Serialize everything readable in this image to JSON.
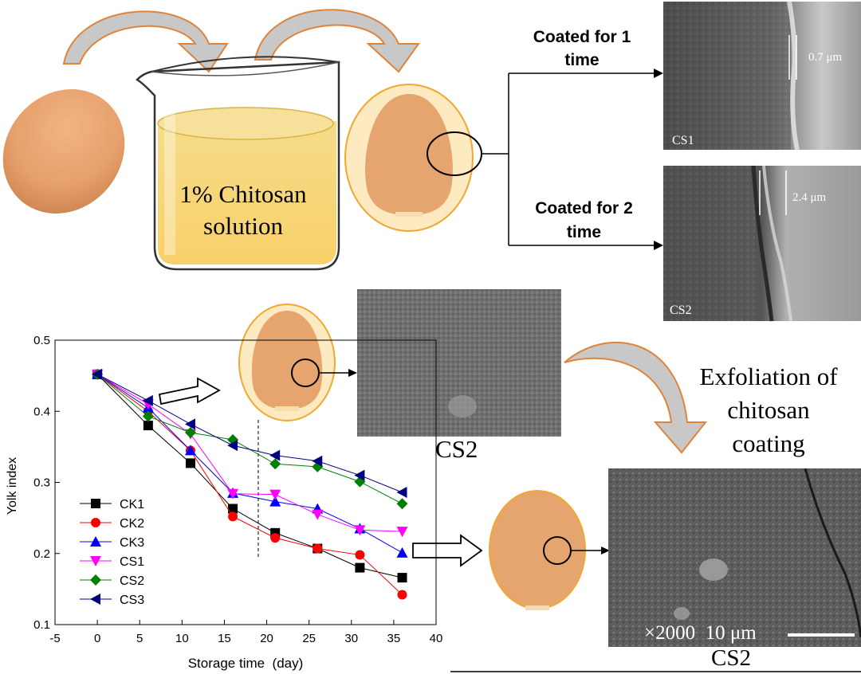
{
  "beaker_text": [
    "1% Chitosan",
    "solution"
  ],
  "branch_top": [
    "Coated for 1",
    "time"
  ],
  "branch_bottom": [
    "Coated for 2",
    "time"
  ],
  "sem_cs1": {
    "label": "CS1",
    "thickness": "0.7 μm"
  },
  "sem_cs2_cross": {
    "label": "CS2",
    "thickness": "2.4 μm"
  },
  "sem_cs2_surface_caption": "CS2",
  "exfoliation": [
    "Exfoliation of",
    "chitosan",
    "coating"
  ],
  "sem_cs2_bottom": {
    "caption": "CS2",
    "scale": "×2000  10 μm"
  },
  "colors": {
    "arrow_fill": "#c0c0c0",
    "arrow_stroke": "#e0843a",
    "egg": "#e09a66",
    "coating_outline": "#f0a830",
    "solution": "#f8d77a"
  },
  "chart_data": {
    "type": "line",
    "xlabel": "Storage time  (day)",
    "ylabel": "Yolk index",
    "xlim": [
      -5,
      40
    ],
    "ylim": [
      0.1,
      0.5
    ],
    "xticks": [
      "-5",
      "0",
      "5",
      "10",
      "15",
      "20",
      "25",
      "30",
      "35",
      "40"
    ],
    "yticks": [
      "0.1",
      "0.2",
      "0.3",
      "0.4",
      "0.5"
    ],
    "x": [
      0,
      6,
      11,
      16,
      21,
      26,
      31,
      36
    ],
    "dashed_vline_x": 19,
    "legend_position": "bottom-left",
    "series": [
      {
        "name": "CK1",
        "color": "#000000",
        "marker": "square",
        "values": [
          0.452,
          0.38,
          0.327,
          0.263,
          0.229,
          0.207,
          0.18,
          0.166
        ]
      },
      {
        "name": "CK2",
        "color": "#ff0000",
        "marker": "circle",
        "values": [
          0.452,
          0.4,
          0.345,
          0.252,
          0.222,
          0.207,
          0.198,
          0.142
        ]
      },
      {
        "name": "CK3",
        "color": "#0000ff",
        "marker": "triangle-up",
        "values": [
          0.452,
          0.405,
          0.345,
          0.285,
          0.273,
          0.263,
          0.235,
          0.201
        ]
      },
      {
        "name": "CS1",
        "color": "#ff00ff",
        "marker": "triangle-down",
        "values": [
          0.452,
          0.41,
          0.368,
          0.284,
          0.283,
          0.255,
          0.233,
          0.231
        ]
      },
      {
        "name": "CS2",
        "color": "#008000",
        "marker": "diamond",
        "values": [
          0.452,
          0.393,
          0.37,
          0.36,
          0.326,
          0.322,
          0.301,
          0.27
        ]
      },
      {
        "name": "CS3",
        "color": "#000080",
        "marker": "triangle-left",
        "values": [
          0.452,
          0.415,
          0.382,
          0.352,
          0.338,
          0.33,
          0.31,
          0.286
        ]
      }
    ]
  }
}
